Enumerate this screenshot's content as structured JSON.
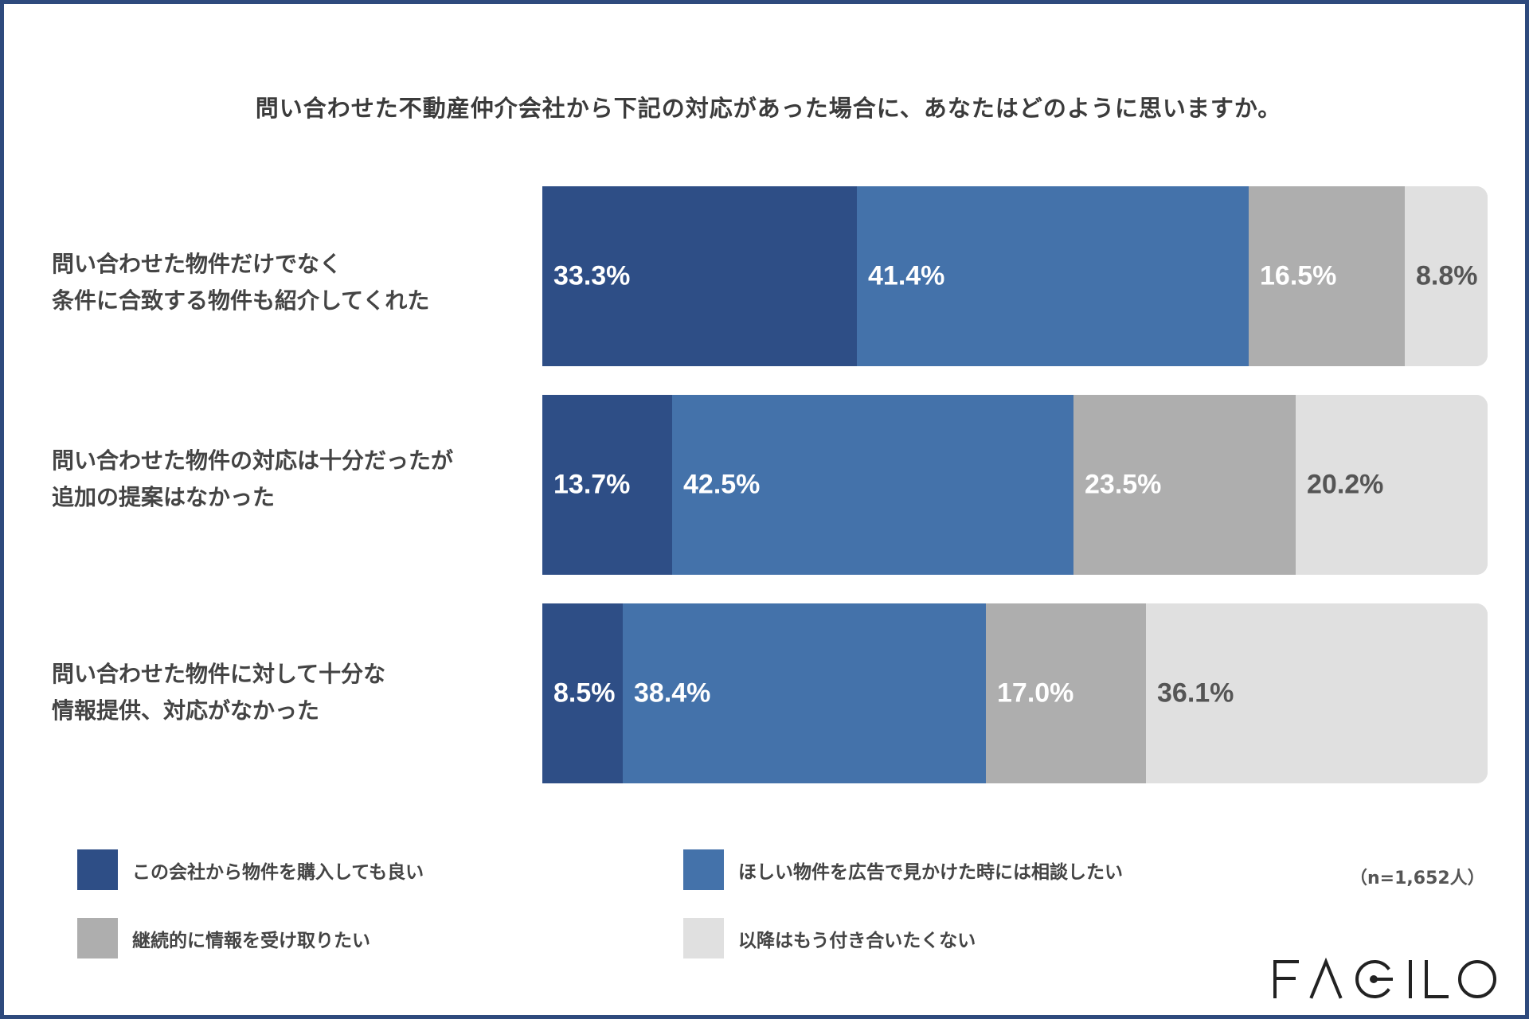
{
  "chart_data": {
    "type": "bar",
    "orientation": "horizontal",
    "stacked": true,
    "title": "問い合わせた不動産仲介会社から下記の対応があった場合に、あなたはどのように思いますか。",
    "categories": [
      "問い合わせた物件だけでなく\n条件に合致する物件も紹介してくれた",
      "問い合わせた物件の対応は十分だったが\n追加の提案はなかった",
      "問い合わせた物件に対して十分な\n情報提供、対応がなかった"
    ],
    "series": [
      {
        "name": "この会社から物件を購入しても良い",
        "color": "#2e4e86",
        "label_color": "#ffffff",
        "values": [
          33.3,
          13.7,
          8.5
        ],
        "labels": [
          "33.3%",
          "13.7%",
          "8.5%"
        ]
      },
      {
        "name": "ほしい物件を広告で見かけた時には相談したい",
        "color": "#4472aa",
        "label_color": "#ffffff",
        "values": [
          41.4,
          42.5,
          38.4
        ],
        "labels": [
          "41.4%",
          "42.5%",
          "38.4%"
        ]
      },
      {
        "name": "継続的に情報を受け取りたい",
        "color": "#aeaeae",
        "label_color": "#ffffff",
        "values": [
          16.5,
          23.5,
          17.0
        ],
        "labels": [
          "16.5%",
          "23.5%",
          "17.0%"
        ]
      },
      {
        "name": "以降はもう付き合いたくない",
        "color": "#e0e0e0",
        "label_color": "#555555",
        "values": [
          8.8,
          20.2,
          36.1
        ],
        "labels": [
          "8.8%",
          "20.2%",
          "36.1%"
        ]
      }
    ],
    "xlim": [
      0,
      100
    ],
    "legend_position": "bottom",
    "note": "（n=1,652人）"
  },
  "brand": {
    "logo_text": "FAGILO",
    "frame_color": "#2e4a7d"
  }
}
